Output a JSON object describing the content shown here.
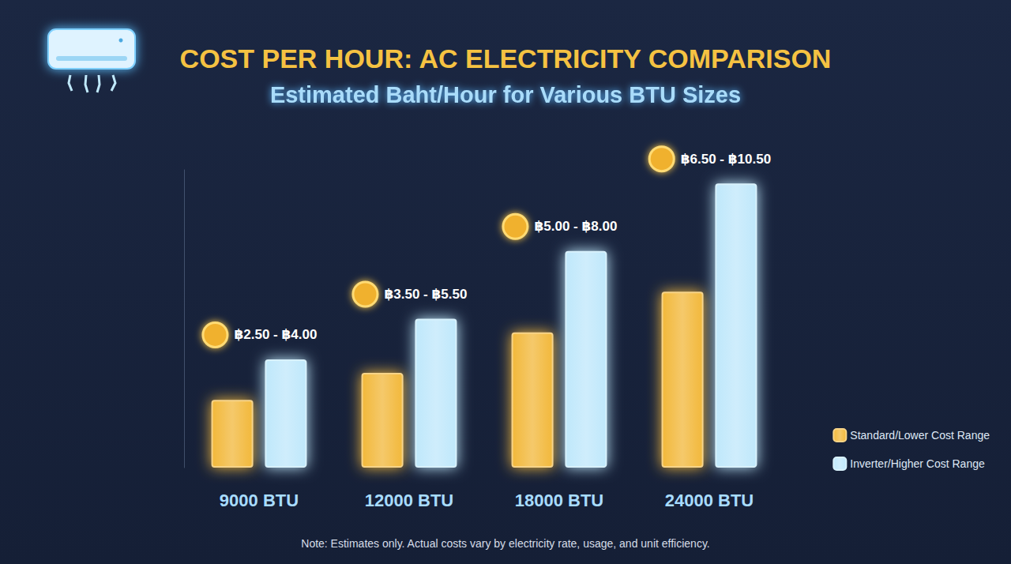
{
  "chart_data": {
    "type": "bar",
    "title": "COST PER HOUR: AC ELECTRICITY COMPARISON",
    "subtitle": "Estimated Baht/Hour for Various BTU Sizes",
    "categories": [
      "9000 BTU",
      "12000 BTU",
      "18000 BTU",
      "24000 BTU"
    ],
    "series": [
      {
        "name": "Standard/Lower Cost Range",
        "color": "#f2b83a",
        "values": [
          2.5,
          3.5,
          5.0,
          6.5
        ]
      },
      {
        "name": "Inverter/Higher Cost Range",
        "color": "#bfe8fb",
        "values": [
          4.0,
          5.5,
          8.0,
          10.5
        ]
      }
    ],
    "annotations": [
      "฿2.50 - ฿4.00",
      "฿3.50 - ฿5.50",
      "฿5.00 - ฿8.00",
      "฿6.50 - ฿10.50"
    ],
    "note": "Note: Estimates only. Actual costs vary by electricity rate, usage, and unit efficiency.",
    "ylim": [
      0,
      11
    ],
    "grid": false,
    "legend": "lower right",
    "tick_labels": "x",
    "data_labels": false
  }
}
